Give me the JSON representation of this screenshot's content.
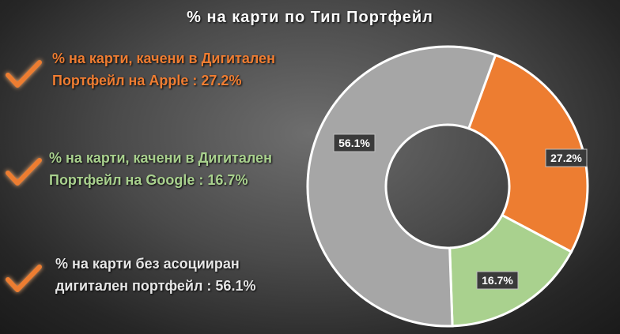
{
  "chart_data": {
    "type": "pie",
    "title": "% на карти по Тип Портфейл",
    "hole": true,
    "slices": [
      {
        "label": "% на карти, качени в Дигитален Портфейл на Apple : 27.2%",
        "value": 27.2,
        "data_label": "27.2%",
        "color": "#ed7d31"
      },
      {
        "label": "% на карти, качени в Дигитален Портфейл на Google : 16.7%",
        "value": 16.7,
        "data_label": "16.7%",
        "color": "#a9d18e"
      },
      {
        "label": "% на карти без асоцииран дигитален портфейл : 56.1%",
        "value": 56.1,
        "data_label": "56.1%",
        "color": "#a6a6a6"
      }
    ]
  },
  "legend": {
    "apple": {
      "line1": "% на карти, качени в Дигитален",
      "line2": "Портфейл на Apple : 27.2%"
    },
    "google": {
      "line1": "% на карти, качени в Дигитален",
      "line2": "Портфейл на Google : 16.7%"
    },
    "none": {
      "line1": "% на карти без асоцииран",
      "line2": "дигитален портфейл : 56.1%"
    }
  },
  "icons": {
    "check": "checkmark-icon",
    "check_color": "#ed7d31"
  }
}
